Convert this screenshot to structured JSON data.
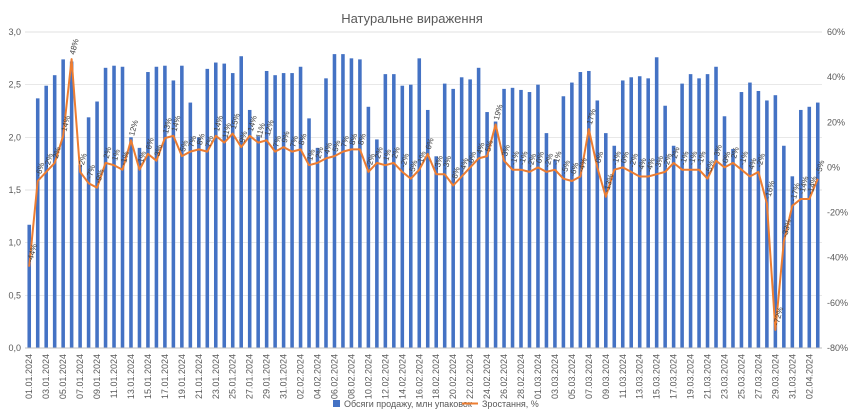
{
  "chart_data": {
    "type": "bar+line",
    "title": "Натуральне вираження",
    "colors": {
      "bars": "#4472C4",
      "line": "#ED7D31",
      "grid": "#D9D9D9",
      "text": "#595959"
    },
    "y_left": {
      "min": 0,
      "max": 3,
      "ticks": [
        "0,0",
        "0,5",
        "1,0",
        "1,5",
        "2,0",
        "2,5",
        "3,0"
      ]
    },
    "y_right": {
      "min": -80,
      "max": 60,
      "ticks": [
        "-80%",
        "-60%",
        "-40%",
        "-20%",
        "0%",
        "20%",
        "40%",
        "60%"
      ]
    },
    "legend": [
      {
        "name": "Обсяги продажу, млн упаковок",
        "kind": "bar"
      },
      {
        "name": "Зростання, %",
        "kind": "line"
      }
    ],
    "legend_position": "bottom",
    "grid": true,
    "categories": [
      "01.01.2024",
      "02.01.2024",
      "03.01.2024",
      "04.01.2024",
      "05.01.2024",
      "06.01.2024",
      "07.01.2024",
      "08.01.2024",
      "09.01.2024",
      "10.01.2024",
      "11.01.2024",
      "12.01.2024",
      "13.01.2024",
      "14.01.2024",
      "15.01.2024",
      "16.01.2024",
      "17.01.2024",
      "18.01.2024",
      "19.01.2024",
      "20.01.2024",
      "21.01.2024",
      "22.01.2024",
      "23.01.2024",
      "24.01.2024",
      "25.01.2024",
      "26.01.2024",
      "27.01.2024",
      "28.01.2024",
      "29.01.2024",
      "30.01.2024",
      "31.01.2024",
      "01.02.2024",
      "02.02.2024",
      "03.02.2024",
      "04.02.2024",
      "05.02.2024",
      "06.02.2024",
      "07.02.2024",
      "08.02.2024",
      "09.02.2024",
      "10.02.2024",
      "11.02.2024",
      "12.02.2024",
      "13.02.2024",
      "14.02.2024",
      "15.02.2024",
      "16.02.2024",
      "17.02.2024",
      "18.02.2024",
      "19.02.2024",
      "20.02.2024",
      "21.02.2024",
      "22.02.2024",
      "23.02.2024",
      "24.02.2024",
      "25.02.2024",
      "26.02.2024",
      "27.02.2024",
      "28.02.2024",
      "29.02.2024",
      "01.03.2024",
      "02.03.2024",
      "03.03.2024",
      "04.03.2024",
      "05.03.2024",
      "06.03.2024",
      "07.03.2024",
      "08.03.2024",
      "09.03.2024",
      "10.03.2024",
      "11.03.2024",
      "12.03.2024",
      "13.03.2024",
      "14.03.2024",
      "15.03.2024",
      "16.03.2024",
      "17.03.2024",
      "18.03.2024",
      "19.03.2024",
      "20.03.2024",
      "21.03.2024",
      "22.03.2024",
      "23.03.2024",
      "24.03.2024",
      "25.03.2024",
      "26.03.2024",
      "27.03.2024",
      "28.03.2024",
      "29.03.2024",
      "30.03.2024",
      "31.03.2024",
      "01.04.2024",
      "02.04.2024",
      "03.04.2024"
    ],
    "x_tick_labels": [
      "01.01.2024",
      "03.01.2024",
      "05.01.2024",
      "07.01.2024",
      "09.01.2024",
      "11.01.2024",
      "13.01.2024",
      "15.01.2024",
      "17.01.2024",
      "19.01.2024",
      "21.01.2024",
      "23.01.2024",
      "25.01.2024",
      "27.01.2024",
      "29.01.2024",
      "31.01.2024",
      "02.02.2024",
      "04.02.2024",
      "06.02.2024",
      "08.02.2024",
      "10.02.2024",
      "12.02.2024",
      "14.02.2024",
      "16.02.2024",
      "18.02.2024",
      "20.02.2024",
      "22.02.2024",
      "24.02.2024",
      "26.02.2024",
      "28.02.2024",
      "01.03.2024",
      "03.03.2024",
      "05.03.2024",
      "07.03.2024",
      "09.03.2024",
      "11.03.2024",
      "13.03.2024",
      "15.03.2024",
      "17.03.2024",
      "19.03.2024",
      "21.03.2024",
      "23.03.2024",
      "25.03.2024",
      "27.03.2024",
      "29.03.2024",
      "31.03.2024",
      "02.04.2024"
    ],
    "series": [
      {
        "name": "Обсяги продажу, млн упаковок",
        "kind": "bar",
        "axis": "left",
        "values": [
          1.17,
          2.37,
          2.49,
          2.59,
          2.74,
          2.72,
          1.74,
          2.19,
          2.34,
          2.66,
          2.68,
          2.67,
          2.0,
          1.9,
          2.62,
          2.67,
          2.68,
          2.54,
          2.68,
          2.33,
          2.0,
          2.65,
          2.71,
          2.7,
          2.61,
          2.77,
          2.26,
          2.01,
          2.63,
          2.59,
          2.61,
          2.61,
          2.67,
          2.18,
          1.9,
          2.56,
          2.79,
          2.79,
          2.75,
          2.74,
          2.29,
          1.98,
          2.6,
          2.6,
          2.49,
          2.5,
          2.75,
          2.26,
          1.82,
          2.51,
          2.46,
          2.57,
          2.55,
          2.66,
          2.24,
          2.15,
          2.46,
          2.47,
          2.45,
          2.43,
          2.5,
          2.04,
          1.79,
          2.39,
          2.52,
          2.62,
          2.63,
          2.35,
          2.04,
          1.92,
          2.54,
          2.57,
          2.58,
          2.56,
          2.76,
          2.3,
          1.92,
          2.51,
          2.6,
          2.56,
          2.6,
          2.67,
          2.2,
          1.89,
          2.43,
          2.52,
          2.44,
          2.35,
          2.4,
          1.92,
          1.63,
          2.26,
          2.29,
          2.33
        ]
      },
      {
        "name": "Зростання, %",
        "kind": "line",
        "axis": "right",
        "values": [
          -44,
          -6,
          -2,
          2,
          14,
          48,
          -2,
          -7,
          -9,
          2,
          1,
          -1,
          12,
          -1,
          6,
          3,
          13,
          14,
          5,
          7,
          8,
          7,
          14,
          11,
          15,
          9,
          14,
          11,
          12,
          7,
          9,
          7,
          8,
          1,
          2,
          4,
          5,
          7,
          8,
          8,
          -2,
          2,
          1,
          2,
          -2,
          -5,
          -1,
          6,
          -3,
          -3,
          -8,
          -4,
          0,
          4,
          5,
          19,
          3,
          -1,
          -1,
          -2,
          0,
          -2,
          -1,
          -5,
          -6,
          -4,
          17,
          0,
          -13,
          -1,
          0,
          -2,
          -4,
          -4,
          -3,
          -2,
          2,
          -1,
          -1,
          -1,
          -5,
          3,
          0,
          2,
          -1,
          -4,
          -2,
          -16,
          -72,
          -33,
          -17,
          -14,
          -14,
          -5
        ],
        "labels": [
          "-44%",
          "-6%",
          "-2%",
          "2%",
          "14%",
          "48%",
          "-2%",
          "-7%",
          "-9%",
          "2%",
          "1%",
          "-1%",
          "12%",
          "-1%",
          "6%",
          "3%",
          "13%",
          "14%",
          "5%",
          "7%",
          "8%",
          "7%",
          "14%",
          "11%",
          "15%",
          "9%",
          "14%",
          "11%",
          "12%",
          "7%",
          "9%",
          "7%",
          "8%",
          "1%",
          "2%",
          "4%",
          "5%",
          "7%",
          "8%",
          "8%",
          "-2%",
          "2%",
          "1%",
          "2%",
          "-2%",
          "-5%",
          "-1%",
          "6%",
          "-3%",
          "-3%",
          "-8%",
          "-4%",
          "0%",
          "4%",
          "5%",
          "19%",
          "3%",
          "-1%",
          "-1%",
          "-2%",
          "0%",
          "-2%",
          "-1%",
          "-5%",
          "-6%",
          "-4%",
          "17%",
          "0%",
          "-13%",
          "-1%",
          "0%",
          "-2%",
          "-4%",
          "-4%",
          "-3%",
          "-2%",
          "2%",
          "-1%",
          "-1%",
          "-1%",
          "-5%",
          "3%",
          "0%",
          "2%",
          "-1%",
          "-4%",
          "-2%",
          "-16%",
          "-72%",
          "-33%",
          "-17%",
          "-14%",
          "-14%",
          "-5%"
        ]
      }
    ]
  }
}
